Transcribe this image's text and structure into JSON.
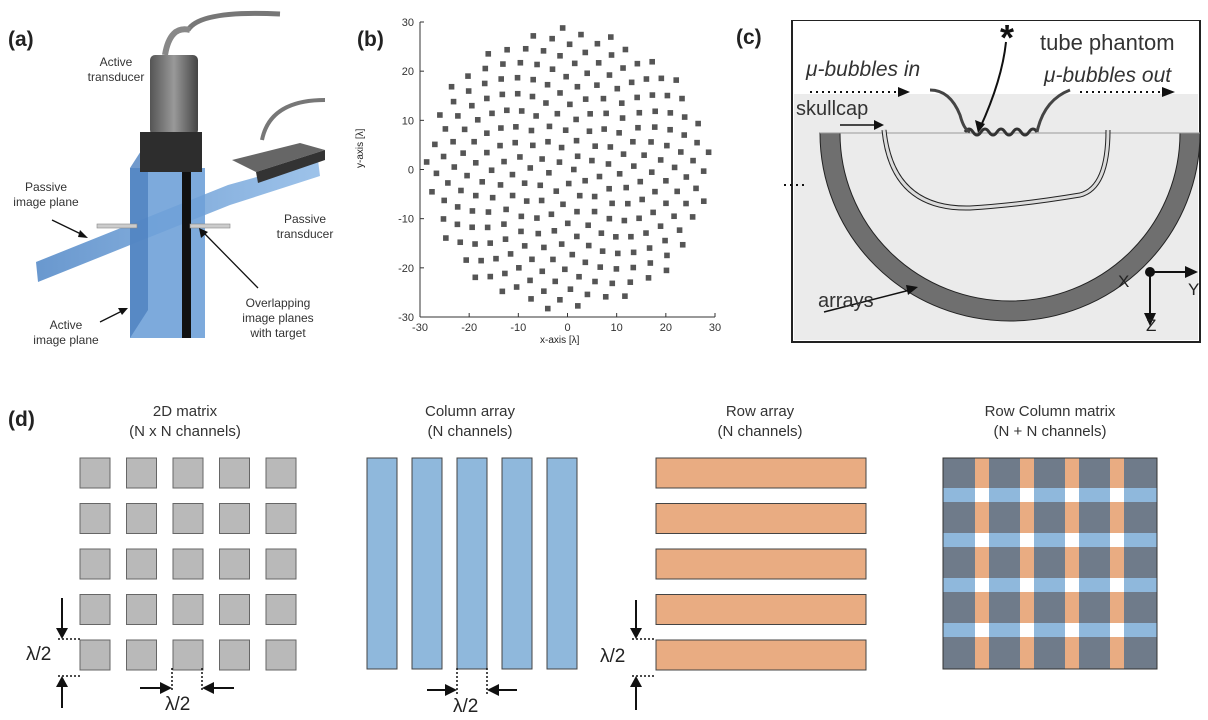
{
  "panels": {
    "a": {
      "tag": "(a)",
      "active_transducer": [
        "Active",
        "transducer"
      ],
      "passive_image_plane": [
        "Passive",
        "image plane"
      ],
      "passive_transducer": [
        "Passive",
        "transducer"
      ],
      "active_image_plane": [
        "Active",
        "image plane"
      ],
      "overlapping": [
        "Overlapping",
        "image planes",
        "with target"
      ]
    },
    "b": {
      "tag": "(b)",
      "ylabel": "y-axis [λ]",
      "xlabel": "x-axis [λ]",
      "xticks": [
        "-30",
        "-20",
        "-10",
        "0",
        "10",
        "20",
        "30"
      ],
      "yticks": [
        "30",
        "20",
        "10",
        "0",
        "-10",
        "-20",
        "-30"
      ]
    },
    "c": {
      "tag": "(c)",
      "tube_phantom": "tube phantom",
      "bubbles_in": "μ-bubbles in",
      "bubbles_out": "μ-bubbles out",
      "skullcap": "skullcap",
      "arrays": "arrays",
      "axis_x": "X",
      "axis_y": "Y",
      "axis_z": "Z"
    },
    "d": {
      "tag": "(d)",
      "matrix_title": [
        "2D matrix",
        "(N x N channels)"
      ],
      "column_title": [
        "Column array",
        "(N channels)"
      ],
      "row_title": [
        "Row array",
        "(N channels)"
      ],
      "rc_title": [
        "Row Column matrix",
        "(N + N channels)"
      ],
      "half_lambda": "λ/2"
    }
  },
  "colors": {
    "matrix_gray": "#b9b9b9",
    "column_blue": "#8fb8dc",
    "row_orange": "#e9ac82",
    "rc_gray": "#6f7b8a",
    "panel_c_bg": "#ebebeb"
  },
  "chart_data": {
    "type": "scatter",
    "title": "",
    "xlabel": "x-axis [λ]",
    "ylabel": "y-axis [λ]",
    "xlim": [
      -30,
      30
    ],
    "ylim": [
      -30,
      30
    ],
    "grid": false,
    "series": [
      {
        "marker": "square",
        "points": "Fermat-spiral sparse array of 256 elements within a radius of ~29 λ",
        "count": 256
      }
    ]
  }
}
